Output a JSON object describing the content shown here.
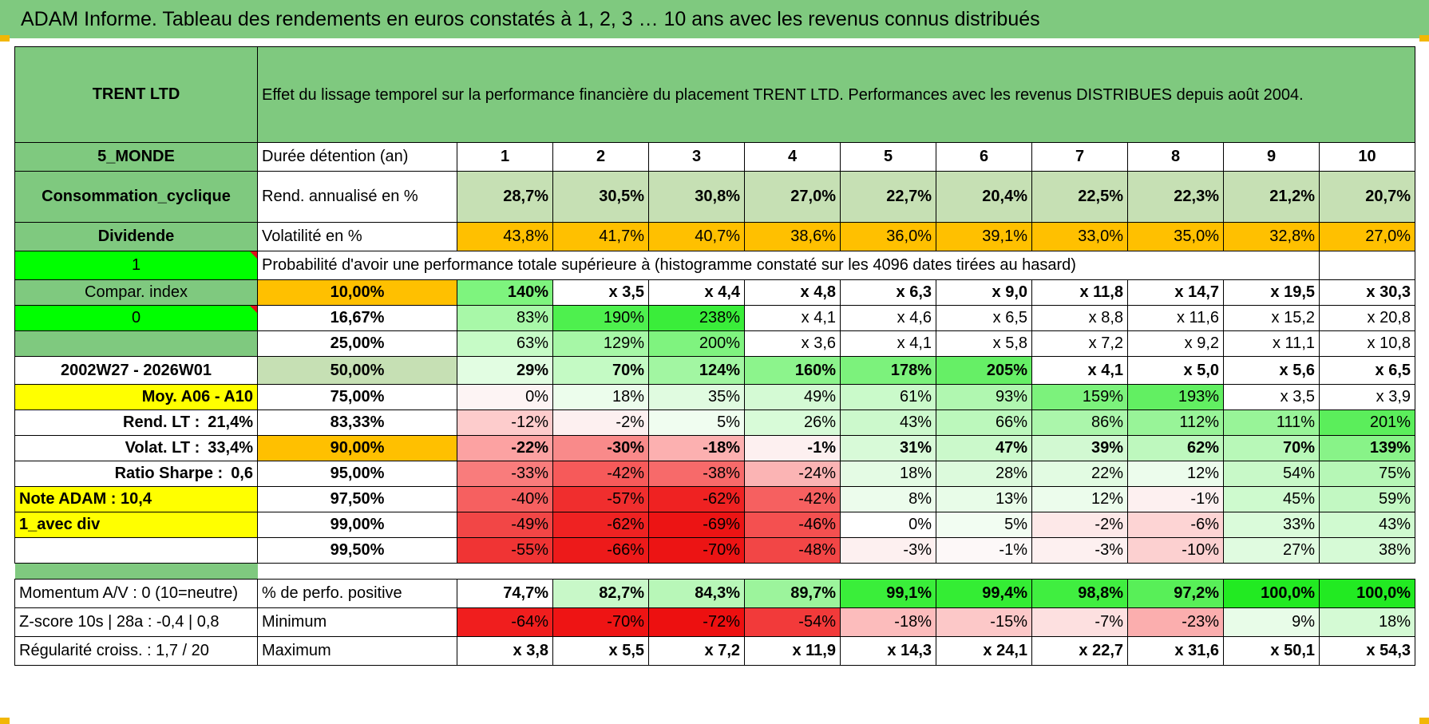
{
  "header": {
    "title": "ADAM Informe. Tableau des rendements en euros constatés à 1, 2, 3 … 10 ans avec les revenus connus distribués"
  },
  "colors": {
    "green": "#7fc97f",
    "light_green": "#c6e0b4",
    "orange": "#ffc000",
    "yellow": "#ffff00",
    "bright_green": "#00ff00",
    "red_text": "#e0101a"
  },
  "info": {
    "name": "TRENT LTD",
    "description": "Effet du lissage temporel sur la performance financière du placement TRENT LTD. Performances avec les revenus DISTRIBUES depuis août 2004.",
    "region": "5_MONDE",
    "sector": "Consommation_cyclique",
    "income_type": "Dividende",
    "flag_1": "1",
    "compar_label": "Compar. index",
    "flag_0": "0",
    "blank_label": "",
    "period": "2002W27 - 2026W01",
    "avg_label": "Moy. A06 - A10",
    "rend_lt_label": "Rend. LT :",
    "rend_lt_value": "21,4%",
    "volat_lt_label": "Volat. LT :",
    "volat_lt_value": "33,4%",
    "sharpe_label": "Ratio Sharpe :",
    "sharpe_value": "0,6",
    "note_adam": "Note ADAM : 10,4",
    "avec_div": "1_avec div",
    "momentum": "Momentum A/V : 0 (10=neutre)",
    "zscore": "Z-score 10s | 28a : -0,4 | 0,8",
    "regularite": "Régularité croiss. : 1,7 / 20"
  },
  "table": {
    "duration_label": "Durée détention (an)",
    "years": [
      "1",
      "2",
      "3",
      "4",
      "5",
      "6",
      "7",
      "8",
      "9",
      "10"
    ],
    "rend_label": "Rend. annualisé en %",
    "rend": [
      "28,7%",
      "30,5%",
      "30,8%",
      "27,0%",
      "22,7%",
      "20,4%",
      "22,5%",
      "22,3%",
      "21,2%",
      "20,7%"
    ],
    "vol_label": "Volatilité en %",
    "vol": [
      "43,8%",
      "41,7%",
      "40,7%",
      "38,6%",
      "36,0%",
      "39,1%",
      "33,0%",
      "35,0%",
      "32,8%",
      "27,0%"
    ],
    "prob_label": "Probabilité d'avoir une performance totale supérieure à (histogramme constaté sur les 4096 dates tirées au hasard)",
    "prob_rows": [
      {
        "p": "10,00%",
        "vals": [
          "140%",
          "x 3,5",
          "x 4,4",
          "x 4,8",
          "x 6,3",
          "x 9,0",
          "x 11,8",
          "x 14,7",
          "x 19,5",
          "x 30,3"
        ]
      },
      {
        "p": "16,67%",
        "vals": [
          "83%",
          "190%",
          "238%",
          "x 4,1",
          "x 4,6",
          "x 6,5",
          "x 8,8",
          "x 11,6",
          "x 15,2",
          "x 20,8"
        ]
      },
      {
        "p": "25,00%",
        "vals": [
          "63%",
          "129%",
          "200%",
          "x 3,6",
          "x 4,1",
          "x 5,8",
          "x 7,2",
          "x 9,2",
          "x 11,1",
          "x 10,8"
        ]
      },
      {
        "p": "50,00%",
        "vals": [
          "29%",
          "70%",
          "124%",
          "160%",
          "178%",
          "205%",
          "x 4,1",
          "x 5,0",
          "x 5,6",
          "x 6,5"
        ]
      },
      {
        "p": "75,00%",
        "vals": [
          "0%",
          "18%",
          "35%",
          "49%",
          "61%",
          "93%",
          "159%",
          "193%",
          "x 3,5",
          "x 3,9"
        ]
      },
      {
        "p": "83,33%",
        "vals": [
          "-12%",
          "-2%",
          "5%",
          "26%",
          "43%",
          "66%",
          "86%",
          "112%",
          "111%",
          "201%"
        ]
      },
      {
        "p": "90,00%",
        "vals": [
          "-22%",
          "-30%",
          "-18%",
          "-1%",
          "31%",
          "47%",
          "39%",
          "62%",
          "70%",
          "139%"
        ]
      },
      {
        "p": "95,00%",
        "vals": [
          "-33%",
          "-42%",
          "-38%",
          "-24%",
          "18%",
          "28%",
          "22%",
          "12%",
          "54%",
          "75%"
        ]
      },
      {
        "p": "97,50%",
        "vals": [
          "-40%",
          "-57%",
          "-62%",
          "-42%",
          "8%",
          "13%",
          "12%",
          "-1%",
          "45%",
          "59%"
        ]
      },
      {
        "p": "99,00%",
        "vals": [
          "-49%",
          "-62%",
          "-69%",
          "-46%",
          "0%",
          "5%",
          "-2%",
          "-6%",
          "33%",
          "43%"
        ]
      },
      {
        "p": "99,50%",
        "vals": [
          "-55%",
          "-66%",
          "-70%",
          "-48%",
          "-3%",
          "-1%",
          "-3%",
          "-10%",
          "27%",
          "38%"
        ]
      }
    ],
    "pos_label": "% de perfo. positive",
    "pos": [
      "74,7%",
      "82,7%",
      "84,3%",
      "89,7%",
      "99,1%",
      "99,4%",
      "98,8%",
      "97,2%",
      "100,0%",
      "100,0%"
    ],
    "min_label": "Minimum",
    "min": [
      "-64%",
      "-70%",
      "-72%",
      "-54%",
      "-18%",
      "-15%",
      "-7%",
      "-23%",
      "9%",
      "18%"
    ],
    "max_label": "Maximum",
    "max": [
      "x 3,8",
      "x 5,5",
      "x 7,2",
      "x 11,9",
      "x 14,3",
      "x 24,1",
      "x 22,7",
      "x 31,6",
      "x 50,1",
      "x 54,3"
    ]
  },
  "cell_colors": {
    "rend": [
      "#c6e0b4",
      "#c6e0b4",
      "#c6e0b4",
      "#c6e0b4",
      "#c6e0b4",
      "#c6e0b4",
      "#c6e0b4",
      "#c6e0b4",
      "#c6e0b4",
      "#c6e0b4"
    ],
    "vol": [
      "#ffc000",
      "#ffc000",
      "#ffc000",
      "#ffc000",
      "#ffc000",
      "#ffc000",
      "#ffc000",
      "#ffc000",
      "#ffc000",
      "#ffc000"
    ],
    "prob": [
      [
        "#7ef47e",
        "#ffffff",
        "#ffffff",
        "#ffffff",
        "#ffffff",
        "#ffffff",
        "#ffffff",
        "#ffffff",
        "#ffffff",
        "#ffffff"
      ],
      [
        "#a8f8a8",
        "#4ef04e",
        "#3aed3a",
        "#ffffff",
        "#ffffff",
        "#ffffff",
        "#ffffff",
        "#ffffff",
        "#ffffff",
        "#ffffff"
      ],
      [
        "#c6fbc6",
        "#a6f7a6",
        "#7ff37f",
        "#ffffff",
        "#ffffff",
        "#ffffff",
        "#ffffff",
        "#ffffff",
        "#ffffff",
        "#ffffff"
      ],
      [
        "#e2fde2",
        "#c4fac4",
        "#a2f6a2",
        "#8cf48c",
        "#7cf27c",
        "#66ef66",
        "#ffffff",
        "#ffffff",
        "#ffffff",
        "#ffffff"
      ],
      [
        "#fdf4f4",
        "#ecfdec",
        "#e0fbe0",
        "#d4fad4",
        "#cafacA",
        "#b0f7b0",
        "#7cf27c",
        "#62ef62",
        "#ffffff",
        "#ffffff"
      ],
      [
        "#fdcccc",
        "#fdf0f0",
        "#f0fdf0",
        "#d8fbd8",
        "#ccf9cc",
        "#bcf8bc",
        "#abf6ab",
        "#98f498",
        "#98f498",
        "#5bee5b"
      ],
      [
        "#fca2a2",
        "#f98a8a",
        "#fcb0b0",
        "#fdf0f0",
        "#d8fad8",
        "#cbf9cb",
        "#d2f9d2",
        "#bef8be",
        "#b8f8b8",
        "#88f388"
      ],
      [
        "#f97c7c",
        "#f65a5a",
        "#f76a6a",
        "#fbb4b4",
        "#e4fbe4",
        "#dcfadc",
        "#e2fbe2",
        "#ecfcec",
        "#c8f9c8",
        "#b6f7b6"
      ],
      [
        "#f66060",
        "#f02e2e",
        "#ef2222",
        "#f66060",
        "#ecfcec",
        "#e8fce8",
        "#ecfcec",
        "#fdf0f0",
        "#ceface",
        "#c2f8c2"
      ],
      [
        "#f24646",
        "#ef2222",
        "#ec1414",
        "#f45050",
        "#ffffff",
        "#f2fdf2",
        "#fde8e8",
        "#fdd4d4",
        "#dafbda",
        "#d0fad0"
      ],
      [
        "#f03434",
        "#ed1a1a",
        "#ec1414",
        "#f24646",
        "#fdf0f0",
        "#fdf8f8",
        "#fdf0f0",
        "#fcd0d0",
        "#e0fbe0",
        "#d6fad6"
      ]
    ],
    "pos": [
      "#ffffff",
      "#c8f8c8",
      "#b8f7b8",
      "#9cf49c",
      "#3aee3a",
      "#34ed34",
      "#40ee40",
      "#58ef58",
      "#22ea22",
      "#22ea22"
    ],
    "min": [
      "#f01e1e",
      "#ee1414",
      "#ed1010",
      "#f23a3a",
      "#fcbcbc",
      "#fcc8c8",
      "#fde0e0",
      "#fbaeae",
      "#e8fce8",
      "#d4fad4"
    ],
    "max": [
      "#ffffff",
      "#ffffff",
      "#ffffff",
      "#ffffff",
      "#ffffff",
      "#ffffff",
      "#ffffff",
      "#ffffff",
      "#ffffff",
      "#ffffff"
    ]
  }
}
